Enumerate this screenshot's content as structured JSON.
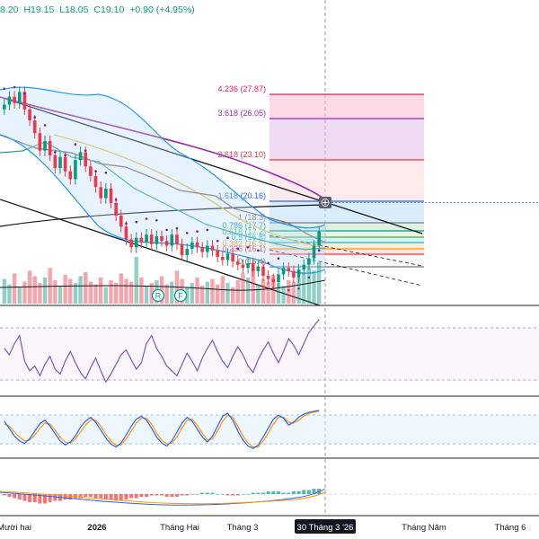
{
  "ohlc": {
    "open": "8.20",
    "high": "H19.15",
    "low": "L18.05",
    "close": "C19.10",
    "change": "+0.90 (+4.95%)"
  },
  "chart_data": {
    "type": "candlestick",
    "title": "",
    "x_tick_labels": [
      "Mười hai",
      "2026",
      "Tháng Hai",
      "Tháng 3",
      "30 Tháng 3 '26",
      "Tháng Năm",
      "Tháng 6"
    ],
    "highlighted_x_label": "30 Tháng 3 '26",
    "fib_levels": [
      {
        "ratio": "4.236",
        "price": 27.87,
        "label": "4.236 (27.87)",
        "color": "#e91e63"
      },
      {
        "ratio": "3.618",
        "price": 26.05,
        "label": "3.618 (26.05)",
        "color": "#9c27b0"
      },
      {
        "ratio": "2.618",
        "price": 23.1,
        "label": "2.618 (23.10)",
        "color": "#f23645"
      },
      {
        "ratio": "1.618",
        "price": 20.16,
        "label": "1.618 (20.16)",
        "color": "#2962ff"
      },
      {
        "ratio": "1",
        "price": 18.3,
        "label": "1 (18.3)",
        "color": "#787b86"
      },
      {
        "ratio": "0.786",
        "price": 17.7,
        "label": "0.786 (17.7)",
        "color": "#089981"
      },
      {
        "ratio": "0.618",
        "price": 17.2,
        "label": "0.618 (17.2)",
        "color": "#4caf50"
      },
      {
        "ratio": "0.5",
        "price": 16.8,
        "label": "0.5 (16.8)",
        "color": "#00bcd4"
      },
      {
        "ratio": "0.382",
        "price": 16.5,
        "label": "0.382 (16.5)",
        "color": "#ff9800"
      },
      {
        "ratio": "0.236",
        "price": 16.1,
        "label": "0.236 (16.1)",
        "color": "#f23645"
      },
      {
        "ratio": "0",
        "price": 15.4,
        "label": "0 (15.4)",
        "color": "#787b86"
      }
    ],
    "close_prices": [
      27.1,
      27.6,
      27.2,
      27.9,
      26.8,
      26.1,
      25.3,
      24.2,
      24.8,
      23.9,
      23.1,
      23.8,
      22.9,
      22.4,
      23.6,
      24.1,
      23.2,
      22.6,
      21.9,
      21.2,
      21.8,
      20.9,
      20.1,
      19.4,
      18.6,
      18.1,
      18.7,
      18.4,
      18.9,
      18.3,
      18.8,
      18.5,
      18.2,
      18.9,
      18.3,
      17.6,
      18.0,
      18.4,
      18.1,
      17.8,
      18.2,
      17.9,
      17.5,
      17.3,
      17.7,
      17.2,
      17.0,
      16.8,
      17.1,
      16.6,
      16.9,
      16.3,
      16.1,
      15.9,
      16.4,
      16.8,
      16.6,
      16.2,
      16.7,
      17.0,
      17.4,
      18.2,
      19.1
    ],
    "volume": [
      18,
      14,
      22,
      12,
      16,
      24,
      20,
      15,
      19,
      26,
      17,
      13,
      21,
      18,
      15,
      20,
      23,
      16,
      14,
      19,
      12,
      17,
      15,
      22,
      18,
      16,
      34,
      19,
      13,
      15,
      17,
      20,
      14,
      16,
      24,
      18,
      12,
      15,
      19,
      13,
      16,
      18,
      14,
      20,
      15,
      12,
      17,
      22,
      19,
      26,
      14,
      18,
      16,
      21,
      15,
      13,
      17,
      16,
      19,
      22,
      26,
      24,
      30
    ],
    "rsi": [
      52,
      48,
      55,
      60,
      44,
      38,
      41,
      35,
      42,
      47,
      39,
      36,
      44,
      50,
      43,
      37,
      33,
      40,
      46,
      38,
      31,
      36,
      42,
      48,
      51,
      45,
      39,
      43,
      55,
      60,
      52,
      47,
      41,
      38,
      35,
      42,
      49,
      44,
      38,
      46,
      52,
      57,
      50,
      44,
      40,
      47,
      53,
      48,
      41,
      37,
      45,
      51,
      56,
      49,
      43,
      50,
      58,
      54,
      48,
      55,
      62,
      66,
      70
    ],
    "stoch_k": [
      70,
      55,
      40,
      30,
      25,
      35,
      50,
      65,
      72,
      60,
      45,
      30,
      22,
      28,
      40,
      58,
      70,
      78,
      68,
      52,
      36,
      24,
      18,
      26,
      42,
      60,
      74,
      80,
      72,
      56,
      38,
      26,
      20,
      30,
      48,
      66,
      78,
      70,
      54,
      38,
      28,
      40,
      60,
      80,
      86,
      72,
      50,
      32,
      20,
      15,
      22,
      38,
      56,
      74,
      82,
      76,
      62,
      68,
      78,
      84,
      88,
      90,
      92
    ],
    "stoch_d": [
      64,
      60,
      48,
      38,
      30,
      32,
      42,
      56,
      66,
      64,
      52,
      38,
      28,
      26,
      34,
      48,
      62,
      72,
      72,
      60,
      44,
      30,
      22,
      22,
      34,
      50,
      66,
      76,
      76,
      64,
      46,
      32,
      24,
      26,
      38,
      56,
      72,
      74,
      62,
      46,
      32,
      34,
      50,
      70,
      82,
      78,
      60,
      40,
      26,
      18,
      18,
      30,
      46,
      64,
      78,
      78,
      68,
      66,
      72,
      80,
      86,
      88,
      90
    ],
    "macd_hist": [
      -1,
      -2,
      -3,
      -4,
      -5,
      -6,
      -6,
      -7,
      -7,
      -6,
      -5,
      -5,
      -4,
      -4,
      -3,
      -3,
      -2,
      -2,
      -3,
      -3,
      -4,
      -4,
      -5,
      -5,
      -4,
      -3,
      -3,
      -2,
      -2,
      -1,
      -1,
      -1,
      -2,
      -2,
      -2,
      -1,
      -1,
      0,
      0,
      1,
      1,
      1,
      0,
      0,
      -1,
      -1,
      -1,
      0,
      0,
      1,
      1,
      1,
      2,
      2,
      2,
      1,
      1,
      2,
      2,
      3,
      3,
      4,
      4
    ],
    "marker_labels": [
      "R",
      "F"
    ]
  }
}
